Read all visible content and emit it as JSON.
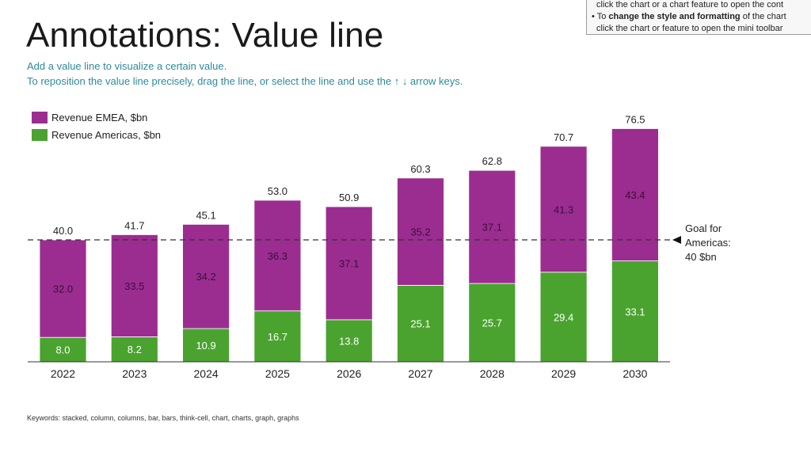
{
  "slide": {
    "title": "Annotations: Value line",
    "subtitle_line1": "Add a value line to visualize a certain value.",
    "subtitle_line2": "To reposition the value line precisely, drag the line, or select the line and use the ↑ ↓ arrow keys.",
    "tip_line1": "click the chart or a chart feature to open the cont",
    "tip_line2_prefix": "• To ",
    "tip_line2_bold": "change the style and formatting",
    "tip_line2_suffix": " of the chart",
    "tip_line3": "click the chart or feature to open the mini toolbar",
    "keywords": "Keywords: stacked, column, columns, bar, bars, think-cell, chart, charts, graph, graphs"
  },
  "colors": {
    "emea": "#9b2d91",
    "americas": "#4aa32f",
    "subtitle": "#2e8a9a"
  },
  "chart_data": {
    "type": "bar",
    "stacked": true,
    "categories": [
      "2022",
      "2023",
      "2024",
      "2025",
      "2026",
      "2027",
      "2028",
      "2029",
      "2030"
    ],
    "series": [
      {
        "name": "Revenue Americas, $bn",
        "values": [
          8.0,
          8.2,
          10.9,
          16.7,
          13.8,
          25.1,
          25.7,
          29.4,
          33.1
        ]
      },
      {
        "name": "Revenue EMEA, $bn",
        "values": [
          32.0,
          33.5,
          34.2,
          36.3,
          37.1,
          35.2,
          37.1,
          41.3,
          43.4
        ]
      }
    ],
    "totals": [
      "40.0",
      "41.7",
      "45.1",
      "53.0",
      "50.9",
      "60.3",
      "62.8",
      "70.7",
      "76.5"
    ],
    "value_line": {
      "value": 40,
      "label_line1": "Goal for",
      "label_line2": "Americas:",
      "label_line3": "40 $bn"
    },
    "legend": [
      "Revenue EMEA, $bn",
      "Revenue Americas, $bn"
    ],
    "ylim": [
      0,
      80
    ],
    "legend_position": "top-left"
  }
}
